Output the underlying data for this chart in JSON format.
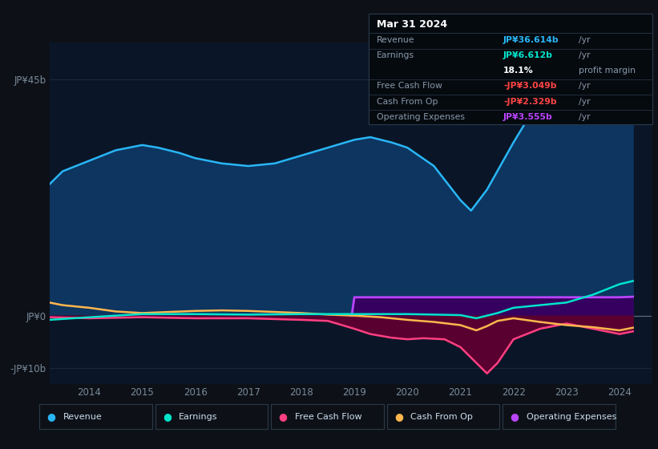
{
  "bg_color": "#0d1117",
  "plot_bg_color": "#0a1628",
  "ylim": [
    -13,
    52
  ],
  "xlim": [
    2013.25,
    2024.6
  ],
  "x_ticks": [
    2014,
    2015,
    2016,
    2017,
    2018,
    2019,
    2020,
    2021,
    2022,
    2023,
    2024
  ],
  "y_ticks": [
    45,
    0,
    -10
  ],
  "y_tick_labels": [
    "JP¥45b",
    "JP¥0",
    "-JP¥10b"
  ],
  "grid_color": "#1a2a3a",
  "zero_line_color": "#5a6a7a",
  "series": {
    "revenue": {
      "color": "#29b6f6",
      "fill_color": "#0d3560",
      "label": "Revenue",
      "x": [
        2013.25,
        2013.5,
        2014.0,
        2014.5,
        2015.0,
        2015.3,
        2015.7,
        2016.0,
        2016.5,
        2017.0,
        2017.5,
        2018.0,
        2018.5,
        2019.0,
        2019.3,
        2019.7,
        2020.0,
        2020.5,
        2021.0,
        2021.2,
        2021.5,
        2022.0,
        2022.3,
        2022.7,
        2023.0,
        2023.5,
        2024.0,
        2024.25
      ],
      "y": [
        25,
        27.5,
        29.5,
        31.5,
        32.5,
        32,
        31,
        30,
        29,
        28.5,
        29,
        30.5,
        32,
        33.5,
        34,
        33,
        32,
        28.5,
        22,
        20,
        24,
        33,
        38,
        42,
        44,
        43,
        38,
        36.6
      ]
    },
    "earnings": {
      "color": "#00e5cc",
      "fill_color": "#003333",
      "label": "Earnings",
      "x": [
        2013.25,
        2014.0,
        2015.0,
        2016.0,
        2017.0,
        2018.0,
        2019.0,
        2020.0,
        2021.0,
        2021.3,
        2021.7,
        2022.0,
        2022.5,
        2023.0,
        2023.5,
        2024.0,
        2024.25
      ],
      "y": [
        -0.8,
        -0.3,
        0.3,
        0.3,
        0.2,
        0.3,
        0.3,
        0.3,
        0.1,
        -0.5,
        0.5,
        1.5,
        2.0,
        2.5,
        4.0,
        6.0,
        6.6
      ]
    },
    "free_cash_flow": {
      "color": "#ff4081",
      "fill_color": "#5a0030",
      "label": "Free Cash Flow",
      "x": [
        2013.25,
        2014.0,
        2015.0,
        2016.0,
        2017.0,
        2018.0,
        2018.5,
        2019.0,
        2019.3,
        2019.7,
        2020.0,
        2020.3,
        2020.7,
        2021.0,
        2021.3,
        2021.5,
        2021.7,
        2022.0,
        2022.5,
        2023.0,
        2023.5,
        2024.0,
        2024.25
      ],
      "y": [
        -0.3,
        -0.5,
        -0.3,
        -0.5,
        -0.5,
        -0.8,
        -1.0,
        -2.5,
        -3.5,
        -4.2,
        -4.5,
        -4.3,
        -4.5,
        -6.0,
        -9.0,
        -11.0,
        -9.0,
        -4.5,
        -2.5,
        -1.5,
        -2.5,
        -3.5,
        -3.0
      ]
    },
    "cash_from_op": {
      "color": "#ffb74d",
      "fill_color": "#3a2000",
      "label": "Cash From Op",
      "x": [
        2013.25,
        2013.5,
        2014.0,
        2014.5,
        2015.0,
        2015.5,
        2016.0,
        2016.5,
        2017.0,
        2017.5,
        2018.0,
        2018.5,
        2019.0,
        2019.5,
        2020.0,
        2020.5,
        2021.0,
        2021.3,
        2021.5,
        2021.7,
        2022.0,
        2022.5,
        2023.0,
        2023.5,
        2024.0,
        2024.25
      ],
      "y": [
        2.5,
        2.0,
        1.5,
        0.8,
        0.5,
        0.7,
        0.9,
        1.0,
        0.9,
        0.7,
        0.5,
        0.2,
        0.0,
        -0.3,
        -0.8,
        -1.2,
        -1.8,
        -2.8,
        -2.0,
        -1.0,
        -0.5,
        -1.2,
        -1.8,
        -2.2,
        -2.8,
        -2.3
      ]
    },
    "operating_expenses": {
      "color": "#bb44ff",
      "fill_color": "#350060",
      "label": "Operating Expenses",
      "x": [
        2018.95,
        2019.0,
        2019.5,
        2020.0,
        2020.5,
        2021.0,
        2021.5,
        2022.0,
        2022.5,
        2023.0,
        2023.5,
        2023.9,
        2024.0,
        2024.25
      ],
      "y": [
        0.0,
        3.5,
        3.5,
        3.5,
        3.5,
        3.5,
        3.5,
        3.5,
        3.5,
        3.5,
        3.5,
        3.5,
        3.5,
        3.6
      ]
    }
  },
  "info_box": {
    "title": "Mar 31 2024",
    "title_color": "#ffffff",
    "bg_color": "#050a0f",
    "border_color": "#2a3a4a",
    "rows": [
      {
        "label": "Revenue",
        "value": "JP¥36.614b",
        "unit": "/yr",
        "value_color": "#29b6f6"
      },
      {
        "label": "Earnings",
        "value": "JP¥6.612b",
        "unit": "/yr",
        "value_color": "#00e5cc"
      },
      {
        "label": "",
        "value": "18.1%",
        "unit": "profit margin",
        "value_color": "#ffffff"
      },
      {
        "label": "Free Cash Flow",
        "value": "-JP¥3.049b",
        "unit": "/yr",
        "value_color": "#ff4444"
      },
      {
        "label": "Cash From Op",
        "value": "-JP¥2.329b",
        "unit": "/yr",
        "value_color": "#ff4444"
      },
      {
        "label": "Operating Expenses",
        "value": "JP¥3.555b",
        "unit": "/yr",
        "value_color": "#bb44ff"
      }
    ]
  },
  "legend": [
    {
      "label": "Revenue",
      "color": "#29b6f6"
    },
    {
      "label": "Earnings",
      "color": "#00e5cc"
    },
    {
      "label": "Free Cash Flow",
      "color": "#ff4081"
    },
    {
      "label": "Cash From Op",
      "color": "#ffb74d"
    },
    {
      "label": "Operating Expenses",
      "color": "#bb44ff"
    }
  ]
}
